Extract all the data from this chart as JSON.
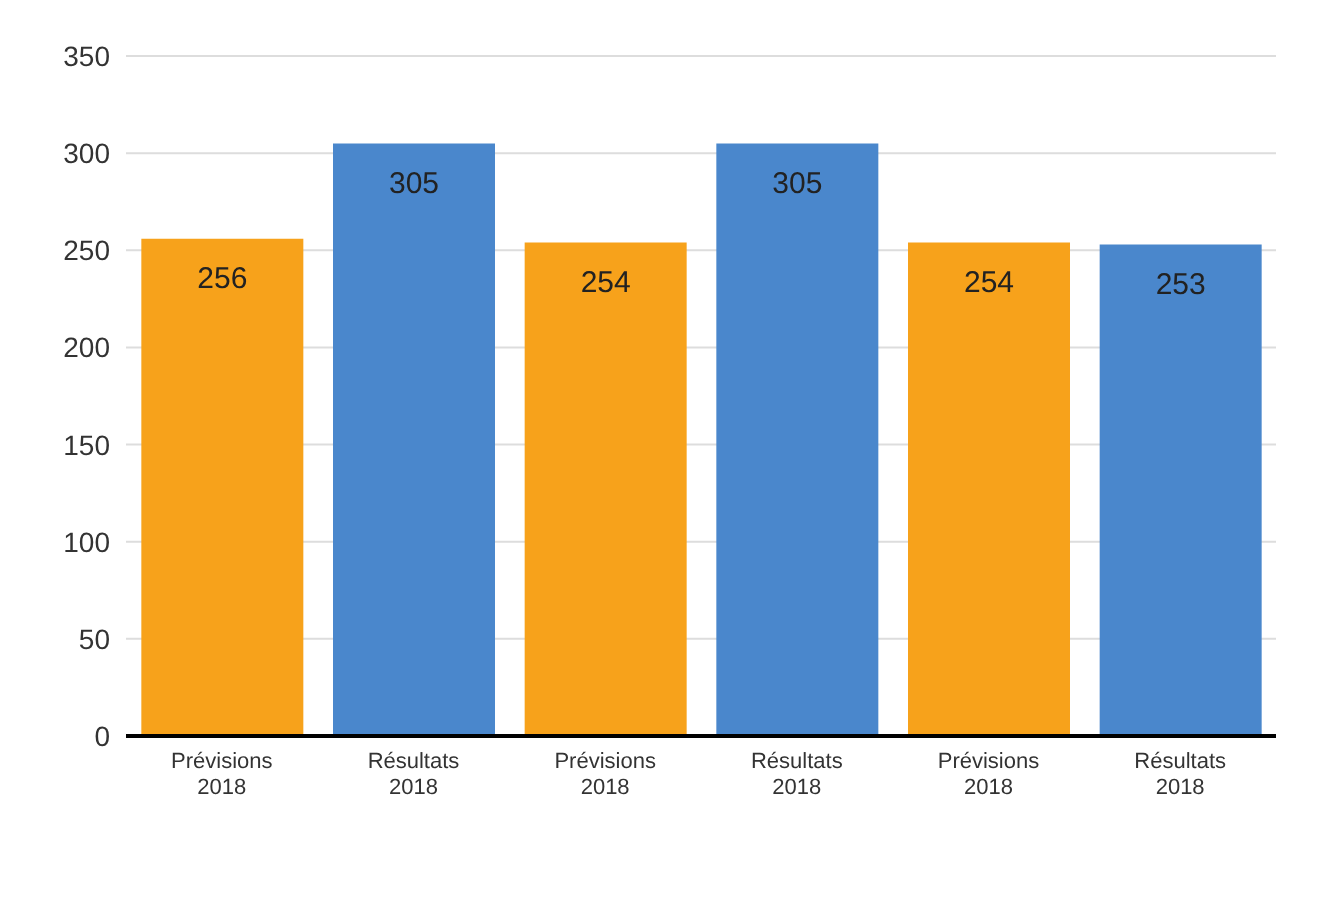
{
  "chart_data": {
    "type": "bar",
    "categories": [
      "Prévisions 2018",
      "Résultats 2018",
      "Prévisions 2018",
      "Résultats 2018",
      "Prévisions 2018",
      "Résultats 2018"
    ],
    "values": [
      256,
      305,
      254,
      305,
      254,
      253
    ],
    "colors": [
      "#f7a21b",
      "#4a87cc",
      "#f7a21b",
      "#4a87cc",
      "#f7a21b",
      "#4a87cc"
    ],
    "ylim": [
      0,
      350
    ],
    "yticks": [
      0,
      50,
      100,
      150,
      200,
      250,
      300,
      350
    ],
    "grid": "y",
    "data_labels": true
  }
}
